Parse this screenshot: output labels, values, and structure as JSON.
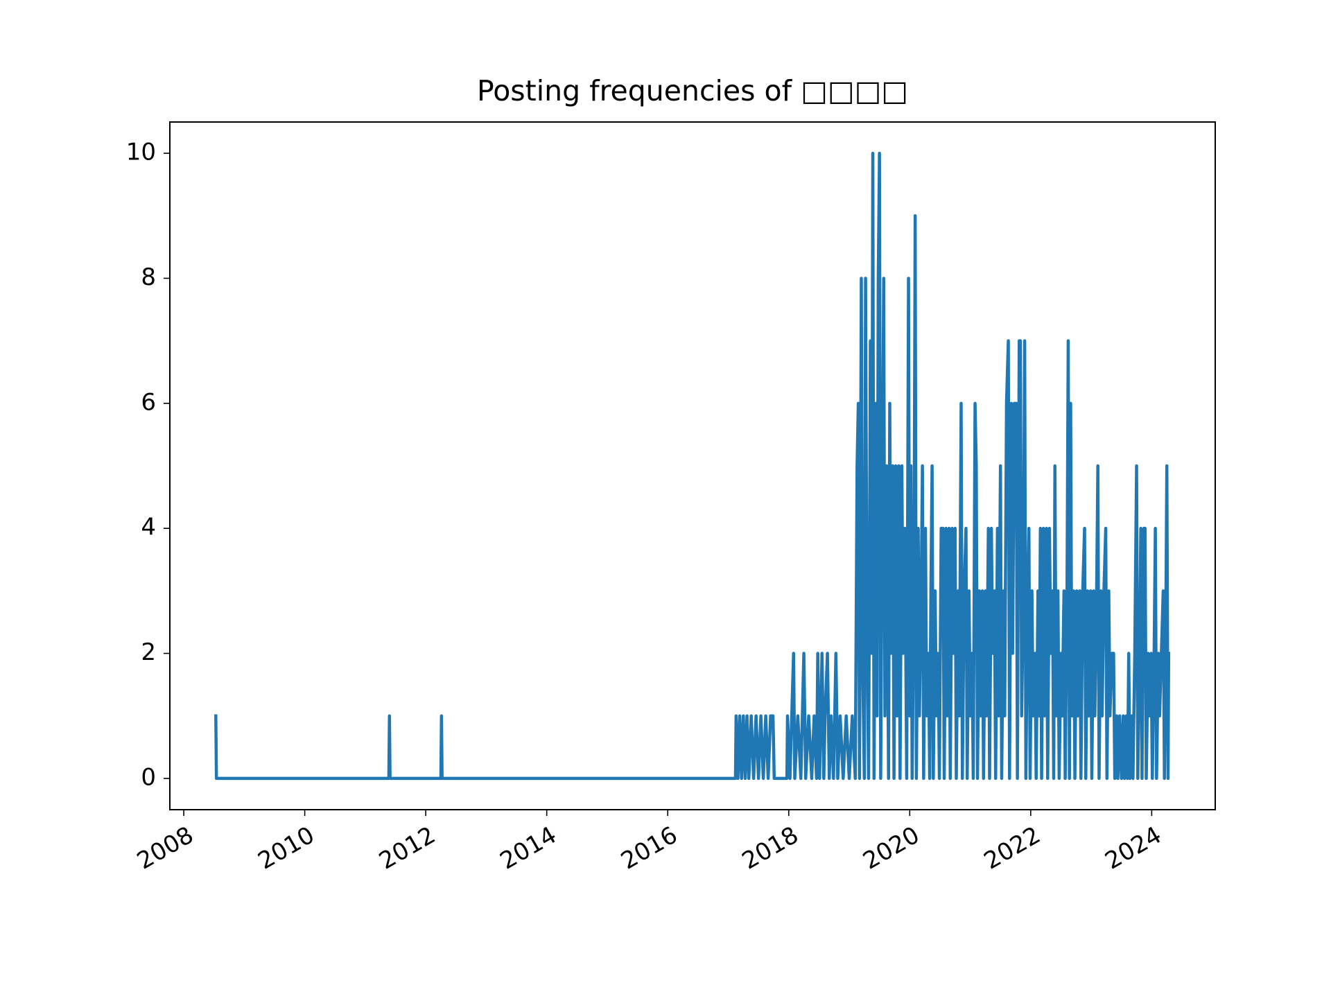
{
  "chart_data": {
    "type": "line",
    "title": "Posting frequencies of □□□□",
    "color": "#1f77b4",
    "xlim": [
      2007.77,
      2025.05
    ],
    "ylim": [
      -0.5,
      10.5
    ],
    "xticks": [
      2008,
      2010,
      2012,
      2014,
      2016,
      2018,
      2020,
      2022,
      2024
    ],
    "yticks": [
      0,
      2,
      4,
      6,
      8,
      10
    ],
    "x": [
      2008.53,
      2008.54,
      2011.39,
      2011.4,
      2011.41,
      2012.25,
      2012.26,
      2012.27,
      2017.12,
      2017.13,
      2017.16,
      2017.19,
      2017.22,
      2017.25,
      2017.28,
      2017.31,
      2017.34,
      2017.38,
      2017.42,
      2017.46,
      2017.5,
      2017.54,
      2017.58,
      2017.62,
      2017.66,
      2017.7,
      2017.74,
      2017.76,
      2017.97,
      2017.98,
      2018.02,
      2018.05,
      2018.08,
      2018.1,
      2018.15,
      2018.2,
      2018.25,
      2018.28,
      2018.33,
      2018.38,
      2018.42,
      2018.46,
      2018.48,
      2018.51,
      2018.55,
      2018.58,
      2018.6,
      2018.64,
      2018.67,
      2018.7,
      2018.74,
      2018.78,
      2018.81,
      2018.85,
      2018.9,
      2018.95,
      2019.0,
      2019.05,
      2019.1,
      2019.13,
      2019.15,
      2019.17,
      2019.2,
      2019.22,
      2019.25,
      2019.27,
      2019.29,
      2019.32,
      2019.35,
      2019.37,
      2019.39,
      2019.41,
      2019.44,
      2019.46,
      2019.48,
      2019.5,
      2019.52,
      2019.55,
      2019.57,
      2019.59,
      2019.62,
      2019.65,
      2019.67,
      2019.69,
      2019.72,
      2019.74,
      2019.77,
      2019.79,
      2019.82,
      2019.84,
      2019.87,
      2019.89,
      2019.92,
      2019.95,
      2019.98,
      2020.0,
      2020.02,
      2020.04,
      2020.07,
      2020.09,
      2020.11,
      2020.14,
      2020.16,
      2020.19,
      2020.21,
      2020.23,
      2020.26,
      2020.28,
      2020.31,
      2020.33,
      2020.35,
      2020.37,
      2020.39,
      2020.42,
      2020.44,
      2020.47,
      2020.49,
      2020.52,
      2020.55,
      2020.57,
      2020.6,
      2020.62,
      2020.65,
      2020.67,
      2020.7,
      2020.72,
      2020.75,
      2020.77,
      2020.8,
      2020.82,
      2020.85,
      2020.87,
      2020.9,
      2020.93,
      2020.95,
      2020.98,
      2021.0,
      2021.03,
      2021.05,
      2021.08,
      2021.1,
      2021.12,
      2021.15,
      2021.17,
      2021.2,
      2021.22,
      2021.25,
      2021.27,
      2021.3,
      2021.32,
      2021.35,
      2021.37,
      2021.4,
      2021.42,
      2021.45,
      2021.47,
      2021.5,
      2021.52,
      2021.55,
      2021.57,
      2021.6,
      2021.63,
      2021.65,
      2021.68,
      2021.7,
      2021.73,
      2021.76,
      2021.78,
      2021.81,
      2021.83,
      2021.85,
      2021.88,
      2021.9,
      2021.92,
      2021.95,
      2021.97,
      2021.99,
      2022.02,
      2022.04,
      2022.07,
      2022.09,
      2022.12,
      2022.14,
      2022.16,
      2022.18,
      2022.21,
      2022.23,
      2022.26,
      2022.28,
      2022.31,
      2022.33,
      2022.36,
      2022.38,
      2022.4,
      2022.42,
      2022.45,
      2022.47,
      2022.5,
      2022.52,
      2022.55,
      2022.57,
      2022.6,
      2022.62,
      2022.64,
      2022.66,
      2022.68,
      2022.71,
      2022.73,
      2022.76,
      2022.78,
      2022.81,
      2022.83,
      2022.86,
      2022.89,
      2022.91,
      2022.94,
      2022.96,
      2022.99,
      2023.01,
      2023.04,
      2023.06,
      2023.09,
      2023.11,
      2023.13,
      2023.16,
      2023.18,
      2023.21,
      2023.24,
      2023.26,
      2023.29,
      2023.31,
      2023.34,
      2023.37,
      2023.39,
      2023.42,
      2023.44,
      2023.47,
      2023.5,
      2023.53,
      2023.55,
      2023.58,
      2023.6,
      2023.62,
      2023.64,
      2023.67,
      2023.69,
      2023.72,
      2023.75,
      2023.77,
      2023.8,
      2023.82,
      2023.84,
      2023.87,
      2023.89,
      2023.91,
      2023.94,
      2023.96,
      2023.99,
      2024.01,
      2024.04,
      2024.06,
      2024.08,
      2024.11,
      2024.13,
      2024.16,
      2024.19,
      2024.21,
      2024.23,
      2024.25,
      2024.27,
      2024.28
    ],
    "values": [
      1,
      0,
      0,
      1,
      0,
      0,
      1,
      0,
      0,
      1,
      0,
      1,
      0,
      1,
      0,
      1,
      0,
      1,
      0,
      1,
      0,
      1,
      0,
      1,
      0,
      1,
      1,
      0,
      0,
      1,
      0,
      1,
      2,
      0,
      1,
      0,
      2,
      0,
      1,
      0,
      1,
      0,
      2,
      0,
      2,
      0,
      1,
      2,
      0,
      1,
      0,
      2,
      0,
      1,
      0,
      1,
      0,
      1,
      0,
      5,
      6,
      0,
      8,
      2,
      0,
      8,
      3,
      0,
      7,
      2,
      10,
      0,
      6,
      1,
      8,
      10,
      0,
      5,
      8,
      1,
      5,
      0,
      6,
      2,
      5,
      0,
      5,
      1,
      5,
      0,
      5,
      2,
      4,
      0,
      8,
      1,
      5,
      0,
      3,
      9,
      0,
      4,
      1,
      3,
      5,
      0,
      4,
      1,
      2,
      0,
      3,
      5,
      0,
      3,
      1,
      2,
      0,
      4,
      4,
      0,
      4,
      1,
      4,
      0,
      4,
      2,
      4,
      0,
      3,
      1,
      6,
      0,
      3,
      4,
      0,
      3,
      1,
      2,
      0,
      6,
      5,
      0,
      3,
      1,
      3,
      0,
      3,
      1,
      4,
      0,
      4,
      2,
      3,
      0,
      4,
      1,
      5,
      0,
      3,
      1,
      6,
      7,
      0,
      6,
      2,
      6,
      6,
      0,
      7,
      7,
      1,
      3,
      7,
      0,
      3,
      4,
      0,
      3,
      1,
      2,
      0,
      3,
      1,
      4,
      0,
      4,
      1,
      4,
      0,
      4,
      2,
      3,
      0,
      5,
      1,
      3,
      0,
      2,
      1,
      3,
      0,
      3,
      7,
      0,
      6,
      1,
      3,
      0,
      3,
      1,
      3,
      0,
      3,
      4,
      0,
      3,
      1,
      3,
      0,
      3,
      1,
      3,
      5,
      0,
      3,
      1,
      3,
      4,
      0,
      3,
      1,
      2,
      2,
      0,
      1,
      0,
      1,
      0,
      1,
      0,
      1,
      0,
      2,
      0,
      1,
      0,
      2,
      5,
      0,
      2,
      4,
      0,
      4,
      4,
      0,
      2,
      1,
      2,
      0,
      2,
      4,
      0,
      2,
      1,
      2,
      3,
      0,
      2,
      5,
      0,
      2
    ]
  }
}
